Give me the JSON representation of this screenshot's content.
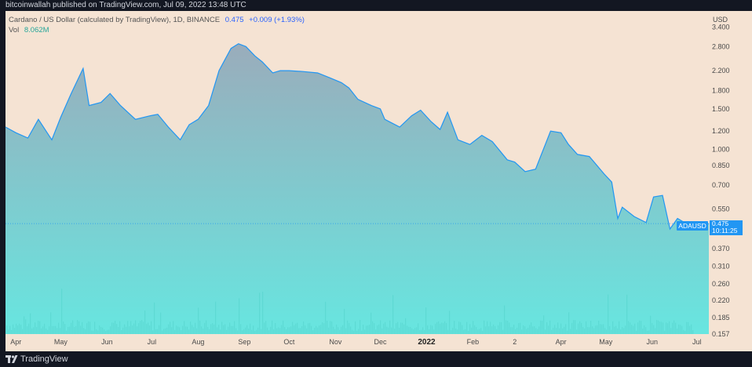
{
  "header": {
    "published": "bitcoinwallah published on TradingView.com, Jul 09, 2022 13:48 UTC"
  },
  "legend": {
    "title": "Cardano / US Dollar (calculated by TradingView), 1D, BINANCE",
    "price": "0.475",
    "change": "+0.009 (+1.93%)",
    "vol_label": "Vol",
    "vol_value": "8.062M"
  },
  "axis": {
    "currency": "USD"
  },
  "last_price": {
    "symbol": "ADAUSD",
    "price": "0.475",
    "countdown": "10:11:25"
  },
  "footer": {
    "brand": "TradingView"
  },
  "colors": {
    "plot_bg": "#f5e3d3",
    "line": "#2196f3",
    "area_top": "#9aacbb",
    "area_bottom": "#67e6e0",
    "volume": "#58d6cf",
    "accent": "#2196f3"
  },
  "chart_data": {
    "type": "area",
    "scale": "log",
    "series": [
      {
        "x": [
          "2021-03-25",
          "2021-04-01",
          "2021-04-09",
          "2021-04-16",
          "2021-04-25",
          "2021-05-01",
          "2021-05-08",
          "2021-05-16",
          "2021-05-20",
          "2021-05-28",
          "2021-06-03",
          "2021-06-10",
          "2021-06-20",
          "2021-06-30",
          "2021-07-05",
          "2021-07-12",
          "2021-07-20",
          "2021-07-26",
          "2021-08-01",
          "2021-08-08",
          "2021-08-15",
          "2021-08-23",
          "2021-08-28",
          "2021-09-02",
          "2021-09-08",
          "2021-09-13",
          "2021-09-20",
          "2021-09-25",
          "2021-10-01",
          "2021-10-10",
          "2021-10-20",
          "2021-10-28",
          "2021-11-05",
          "2021-11-10",
          "2021-11-16",
          "2021-11-25",
          "2021-12-01",
          "2021-12-04",
          "2021-12-14",
          "2021-12-22",
          "2021-12-28",
          "2022-01-04",
          "2022-01-10",
          "2022-01-15",
          "2022-01-22",
          "2022-01-30",
          "2022-02-07",
          "2022-02-14",
          "2022-02-24",
          "2022-03-01",
          "2022-03-08",
          "2022-03-15",
          "2022-03-25",
          "2022-04-01",
          "2022-04-06",
          "2022-04-12",
          "2022-04-20",
          "2022-04-30",
          "2022-05-05",
          "2022-05-09",
          "2022-05-12",
          "2022-05-20",
          "2022-05-28",
          "2022-06-02",
          "2022-06-08",
          "2022-06-13",
          "2022-06-18",
          "2022-06-25",
          "2022-07-01",
          "2022-07-09"
        ],
        "y": [
          1.25,
          1.18,
          1.12,
          1.35,
          1.1,
          1.38,
          1.75,
          2.25,
          1.55,
          1.6,
          1.75,
          1.55,
          1.35,
          1.4,
          1.42,
          1.25,
          1.1,
          1.28,
          1.35,
          1.55,
          2.2,
          2.75,
          2.88,
          2.8,
          2.55,
          2.4,
          2.15,
          2.2,
          2.2,
          2.18,
          2.15,
          2.05,
          1.95,
          1.85,
          1.65,
          1.55,
          1.5,
          1.35,
          1.25,
          1.4,
          1.48,
          1.32,
          1.22,
          1.45,
          1.1,
          1.05,
          1.15,
          1.08,
          0.9,
          0.88,
          0.8,
          0.82,
          1.2,
          1.18,
          1.05,
          0.95,
          0.93,
          0.78,
          0.72,
          0.5,
          0.56,
          0.51,
          0.48,
          0.62,
          0.63,
          0.45,
          0.5,
          0.47,
          0.45,
          0.475
        ]
      }
    ],
    "volume_label": "Vol",
    "volume_last": "8.062M",
    "y_ticks": [
      "3.400",
      "2.800",
      "2.200",
      "1.800",
      "1.500",
      "1.200",
      "1.000",
      "0.850",
      "0.700",
      "0.550",
      "0.475",
      "0.370",
      "0.310",
      "0.260",
      "0.220",
      "0.185",
      "0.157"
    ],
    "y_tick_values": [
      3.4,
      2.8,
      2.2,
      1.8,
      1.5,
      1.2,
      1.0,
      0.85,
      0.7,
      0.55,
      0.475,
      0.37,
      0.31,
      0.26,
      0.22,
      0.185,
      0.157
    ],
    "x_ticks": [
      "Apr",
      "May",
      "Jun",
      "Jul",
      "Aug",
      "Sep",
      "Oct",
      "Nov",
      "Dec",
      "2022",
      "Feb",
      "2",
      "Apr",
      "May",
      "Jun",
      "Jul"
    ],
    "x_tick_dates": [
      "2021-04-01",
      "2021-05-01",
      "2021-06-01",
      "2021-07-01",
      "2021-08-01",
      "2021-09-01",
      "2021-10-01",
      "2021-11-01",
      "2021-12-01",
      "2022-01-01",
      "2022-02-01",
      "2022-03-01",
      "2022-04-01",
      "2022-05-01",
      "2022-06-01",
      "2022-07-01"
    ],
    "ylim": [
      0.157,
      4.0
    ],
    "xlim": [
      "2021-03-25",
      "2022-07-09"
    ],
    "grid": false,
    "legend_position": "top-left"
  }
}
